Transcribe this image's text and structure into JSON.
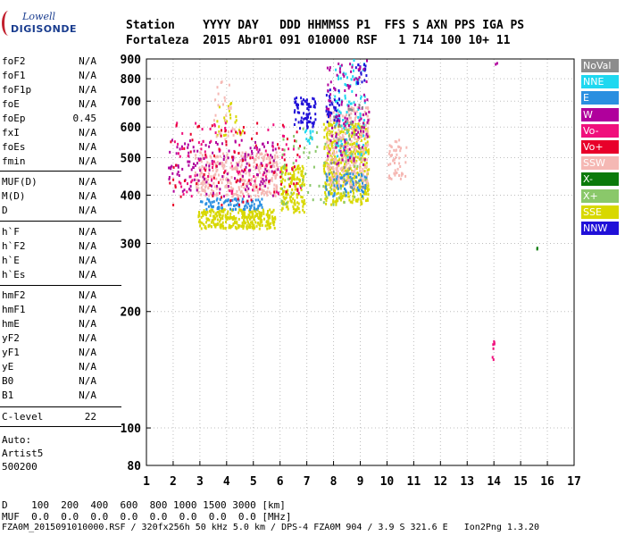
{
  "logo": {
    "line1": "Lowell",
    "line2": "DIGISONDE"
  },
  "header": {
    "row1": "Station    YYYY DAY   DDD HHMMSS P1  FFS S AXN PPS IGA PS",
    "row2": "Fortaleza  2015 Abr01 091 010000 RSF   1 714 100 10+ 11"
  },
  "params": [
    {
      "name": "foF2",
      "value": "N/A"
    },
    {
      "name": "foF1",
      "value": "N/A"
    },
    {
      "name": "foF1p",
      "value": "N/A"
    },
    {
      "name": "foE",
      "value": "N/A"
    },
    {
      "name": "foEp",
      "value": "0.45"
    },
    {
      "name": "fxI",
      "value": "N/A"
    },
    {
      "name": "foEs",
      "value": "N/A"
    },
    {
      "name": "fmin",
      "value": "N/A"
    },
    {
      "name": "MUF(D)",
      "value": "N/A"
    },
    {
      "name": "M(D)",
      "value": "N/A"
    },
    {
      "name": "D",
      "value": "N/A"
    },
    {
      "name": "h`F",
      "value": "N/A"
    },
    {
      "name": "h`F2",
      "value": "N/A"
    },
    {
      "name": "h`E",
      "value": "N/A"
    },
    {
      "name": "h`Es",
      "value": "N/A"
    },
    {
      "name": "hmF2",
      "value": "N/A"
    },
    {
      "name": "hmF1",
      "value": "N/A"
    },
    {
      "name": "hmE",
      "value": "N/A"
    },
    {
      "name": "yF2",
      "value": "N/A"
    },
    {
      "name": "yF1",
      "value": "N/A"
    },
    {
      "name": "yE",
      "value": "N/A"
    },
    {
      "name": "B0",
      "value": "N/A"
    },
    {
      "name": "B1",
      "value": "N/A"
    },
    {
      "name": "C-level",
      "value": "22"
    }
  ],
  "auto": {
    "line1": "Auto:",
    "line2": "Artist5",
    "line3": "500200"
  },
  "legend": [
    {
      "label": "NoVal",
      "color": "#8c8c8c"
    },
    {
      "label": "NNE",
      "color": "#1fd8f0"
    },
    {
      "label": "E",
      "color": "#2a8fe0"
    },
    {
      "label": "W",
      "color": "#b0009c"
    },
    {
      "label": "Vo-",
      "color": "#f0107c"
    },
    {
      "label": "Vo+",
      "color": "#e8002a"
    },
    {
      "label": "SSW",
      "color": "#f5b8b4"
    },
    {
      "label": "X-",
      "color": "#0a7a0a"
    },
    {
      "label": "X+",
      "color": "#8ac86a"
    },
    {
      "label": "SSE",
      "color": "#d8d800"
    },
    {
      "label": "NNW",
      "color": "#2010d8"
    }
  ],
  "footer": {
    "d_row": "D    100  200  400  600  800 1000 1500 3000 [km]",
    "muf_row": "MUF  0.0  0.0  0.0  0.0  0.0  0.0  0.0  0.0 [MHz]",
    "file_row": "FZA0M_2015091010000.RSF / 320fx256h 50 kHz 5.0 km / DPS-4 FZA0M 904 / 3.9 S 321.6 E   Ion2Png 1.3.20"
  },
  "chart_data": {
    "type": "scatter",
    "title": "",
    "xlabel": "",
    "ylabel": "",
    "xlim": [
      1,
      17
    ],
    "ylim": [
      80,
      900
    ],
    "y_scale": "log",
    "xticks": [
      1,
      2,
      3,
      4,
      5,
      6,
      7,
      8,
      9,
      10,
      11,
      12,
      13,
      14,
      15,
      16,
      17
    ],
    "yticks": [
      80,
      100,
      200,
      300,
      400,
      500,
      600,
      700,
      800,
      900
    ],
    "grid": "dotted",
    "legend_placement": "right",
    "series": [
      {
        "name": "SSE",
        "color": "#d8d800",
        "clusters": [
          {
            "x": [
              2.9,
              5.8
            ],
            "y": [
              330,
              370
            ],
            "density": 1.0
          },
          {
            "x": [
              6.0,
              6.9
            ],
            "y": [
              360,
              480
            ],
            "density": 0.6
          },
          {
            "x": [
              7.6,
              9.3
            ],
            "y": [
              380,
              620
            ],
            "density": 0.6
          },
          {
            "x": [
              3.6,
              4.6
            ],
            "y": [
              560,
              700
            ],
            "density": 0.12
          }
        ]
      },
      {
        "name": "SSW",
        "color": "#f5b8b4",
        "clusters": [
          {
            "x": [
              2.8,
              5.9
            ],
            "y": [
              400,
              520
            ],
            "density": 0.45
          },
          {
            "x": [
              7.7,
              9.3
            ],
            "y": [
              420,
              680
            ],
            "density": 0.4
          },
          {
            "x": [
              10.0,
              10.7
            ],
            "y": [
              440,
              560
            ],
            "density": 0.3
          },
          {
            "x": [
              3.5,
              4.3
            ],
            "y": [
              560,
              800
            ],
            "density": 0.1
          }
        ]
      },
      {
        "name": "E",
        "color": "#2a8fe0",
        "clusters": [
          {
            "x": [
              3.0,
              5.3
            ],
            "y": [
              370,
              395
            ],
            "density": 0.6
          },
          {
            "x": [
              7.6,
              9.2
            ],
            "y": [
              400,
              460
            ],
            "density": 0.3
          }
        ]
      },
      {
        "name": "NNE",
        "color": "#1fd8f0",
        "clusters": [
          {
            "x": [
              6.9,
              7.2
            ],
            "y": [
              540,
              610
            ],
            "density": 0.4
          },
          {
            "x": [
              8.0,
              9.2
            ],
            "y": [
              500,
              900
            ],
            "density": 0.15
          }
        ]
      },
      {
        "name": "NNW",
        "color": "#2010d8",
        "clusters": [
          {
            "x": [
              6.5,
              7.3
            ],
            "y": [
              600,
              720
            ],
            "density": 0.55
          },
          {
            "x": [
              7.7,
              8.2
            ],
            "y": [
              620,
              760
            ],
            "density": 0.4
          },
          {
            "x": [
              8.8,
              9.2
            ],
            "y": [
              780,
              880
            ],
            "density": 0.4
          }
        ]
      },
      {
        "name": "W",
        "color": "#b0009c",
        "clusters": [
          {
            "x": [
              1.8,
              5.9
            ],
            "y": [
              400,
              560
            ],
            "density": 0.12
          },
          {
            "x": [
              7.7,
              9.3
            ],
            "y": [
              480,
              900
            ],
            "density": 0.12
          },
          {
            "x": [
              14.0,
              14.1
            ],
            "y": [
              870,
              885
            ],
            "density": 1.0
          }
        ]
      },
      {
        "name": "Vo-",
        "color": "#f0107c",
        "clusters": [
          {
            "x": [
              2.0,
              6.8
            ],
            "y": [
              400,
              620
            ],
            "density": 0.05
          },
          {
            "x": [
              13.9,
              14.0
            ],
            "y": [
              150,
              170
            ],
            "density": 0.6
          }
        ]
      },
      {
        "name": "Vo+",
        "color": "#e8002a",
        "clusters": [
          {
            "x": [
              1.8,
              6.8
            ],
            "y": [
              380,
              620
            ],
            "density": 0.04
          }
        ]
      },
      {
        "name": "X-",
        "color": "#0a7a0a",
        "clusters": [
          {
            "x": [
              15.5,
              15.6
            ],
            "y": [
              290,
              296
            ],
            "density": 1.0
          }
        ]
      },
      {
        "name": "X+",
        "color": "#8ac86a",
        "clusters": [
          {
            "x": [
              6.0,
              9.2
            ],
            "y": [
              380,
              600
            ],
            "density": 0.05
          }
        ]
      },
      {
        "name": "NoVal",
        "color": "#8c8c8c",
        "clusters": [
          {
            "x": [
              7.7,
              9.2
            ],
            "y": [
              400,
              700
            ],
            "density": 0.03
          }
        ]
      }
    ]
  }
}
